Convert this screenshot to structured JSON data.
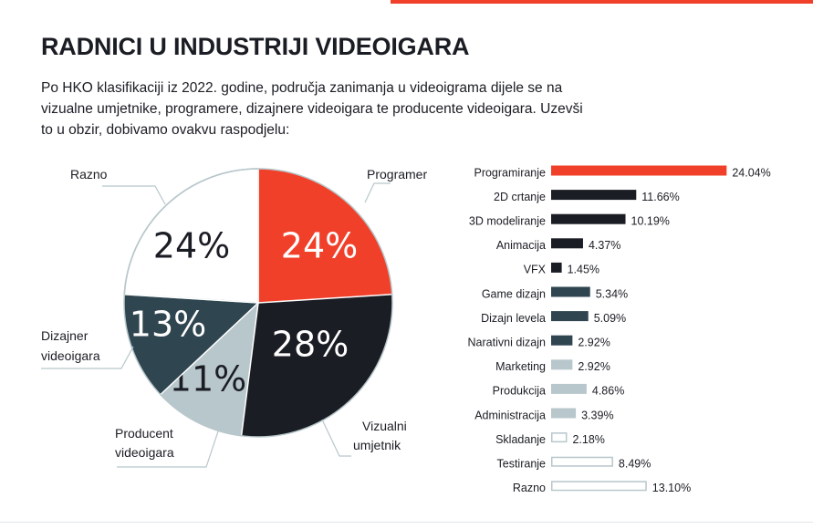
{
  "header": {
    "title": "RADNICI U INDUSTRIJI VIDEOIGARA",
    "intro": "Po HKO klasifikaciji iz 2022. godine, područja zanimanja u videoigrama dijele se na vizualne umjetnike, programere, dizajnere videoigara te producente videoigara. Uzevši to u obzir, dobivamo ovakvu raspodjelu:"
  },
  "colors": {
    "accent": "#f0402a",
    "dark": "#1b1d24",
    "slate": "#2f4550",
    "light": "#b8c7cb",
    "white": "#ffffff",
    "outline": "#b8c7cb"
  },
  "chart_data": [
    {
      "type": "pie",
      "slices": [
        {
          "name": "Programer",
          "value": 24,
          "label": "24%",
          "color": "#f0402a",
          "text_color": "#ffffff"
        },
        {
          "name": "Vizualni umjetnik",
          "value": 28,
          "label": "28%",
          "color": "#1b1d24",
          "text_color": "#ffffff"
        },
        {
          "name": "Producent videoigara",
          "value": 11,
          "label": "11%",
          "color": "#b8c7cb",
          "text_color": "#1b1d24"
        },
        {
          "name": "Dizajner videoigara",
          "value": 13,
          "label": "13%",
          "color": "#2f4550",
          "text_color": "#ffffff"
        },
        {
          "name": "Razno",
          "value": 24,
          "label": "24%",
          "color": "#ffffff",
          "text_color": "#1b1d24"
        }
      ]
    },
    {
      "type": "bar",
      "orientation": "horizontal",
      "categories": [
        "Programiranje",
        "2D crtanje",
        "3D modeliranje",
        "Animacija",
        "VFX",
        "Game dizajn",
        "Dizajn levela",
        "Narativni dizajn",
        "Marketing",
        "Produkcija",
        "Administracija",
        "Skladanje",
        "Testiranje",
        "Razno"
      ],
      "values": [
        24.04,
        11.66,
        10.19,
        4.37,
        1.45,
        5.34,
        5.09,
        2.92,
        2.92,
        4.86,
        3.39,
        2.18,
        8.49,
        13.1
      ],
      "value_labels": [
        "24.04%",
        "11.66%",
        "10.19%",
        "4.37%",
        "1.45%",
        "5.34%",
        "5.09%",
        "2.92%",
        "2.92%",
        "4.86%",
        "3.39%",
        "2.18%",
        "8.49%",
        "13.10%"
      ],
      "bar_colors": [
        "#f0402a",
        "#1b1d24",
        "#1b1d24",
        "#1b1d24",
        "#1b1d24",
        "#2f4550",
        "#2f4550",
        "#2f4550",
        "#b8c7cb",
        "#b8c7cb",
        "#b8c7cb",
        "outline",
        "outline",
        "outline"
      ]
    }
  ]
}
